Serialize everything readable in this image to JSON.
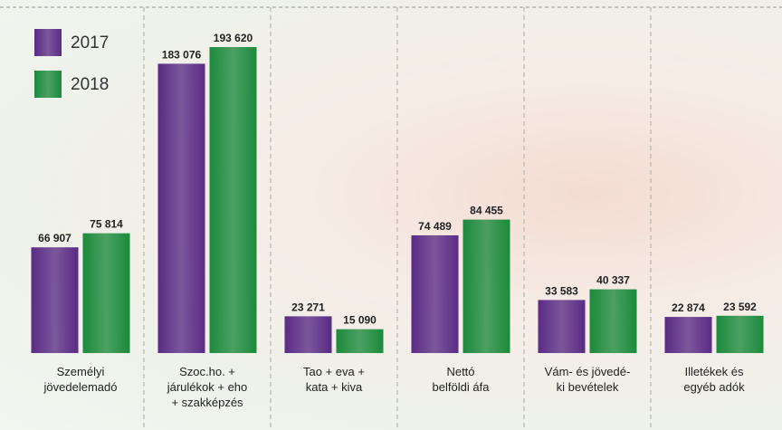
{
  "chart_data": {
    "type": "bar",
    "categories": [
      "Személyi\njövedelemadó",
      "Szoc.ho. +\njárulékok + eho\n+ szakképzés",
      "Tao + eva +\nkata + kiva",
      "Nettó\nbelföldi áfa",
      "Vám- és jövedé-\nki bevételek",
      "Illetékek és\negyéb adók"
    ],
    "series": [
      {
        "name": "2017",
        "color": "#5a2b86",
        "values": [
          66907,
          183076,
          23271,
          74489,
          33583,
          22874
        ],
        "value_labels": [
          "66 907",
          "183 076",
          "23 271",
          "74 489",
          "33 583",
          "22 874"
        ]
      },
      {
        "name": "2018",
        "color": "#1c8a3c",
        "values": [
          75814,
          193620,
          15090,
          84455,
          40337,
          23592
        ],
        "value_labels": [
          "75 814",
          "193 620",
          "15 090",
          "84 455",
          "40 337",
          "23 592"
        ]
      }
    ],
    "legend": "top-left"
  }
}
